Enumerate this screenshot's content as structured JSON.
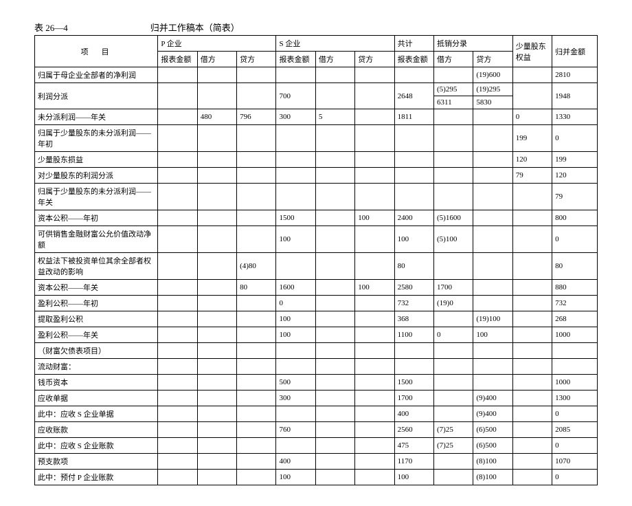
{
  "heading": {
    "number": "表 26—4",
    "title": "归并工作稿本（简表）"
  },
  "columns": {
    "item": "项　目",
    "p_enterprise": "P 企业",
    "s_enterprise": "S 企业",
    "total": "共计",
    "offset": "抵销分录",
    "minority": "少量股东权益",
    "final": "归并金额",
    "sub_amount": "报表金额",
    "sub_debit": "借方",
    "sub_credit": "贷方"
  },
  "rows": [
    {
      "label": "归属于母企业全部者的净利润",
      "p_amt": "",
      "p_dr": "",
      "p_cr": "",
      "s_amt": "",
      "s_dr": "",
      "s_cr": "",
      "tot": "",
      "off_dr": "",
      "off_cr": "(19)600",
      "min": "",
      "fin": "2810"
    },
    {
      "label": "利润分派",
      "p_amt": "",
      "p_dr": "",
      "p_cr": "",
      "s_amt": "700",
      "s_dr": "",
      "s_cr": "",
      "tot": "2648",
      "off_dr": [
        "(5)295",
        "6311"
      ],
      "off_cr": [
        "(19)295",
        "5830"
      ],
      "min": "",
      "fin": "1948",
      "split": true
    },
    {
      "label": "未分派利润——年关",
      "p_amt": "",
      "p_dr": "480",
      "p_cr": "796",
      "s_amt": "300",
      "s_dr": "5",
      "s_cr": "",
      "tot": "1811",
      "off_dr": "",
      "off_cr": "",
      "min": "0",
      "fin": "1330"
    },
    {
      "label": "归属于少量股东的未分派利润——年初",
      "p_amt": "",
      "p_dr": "",
      "p_cr": "",
      "s_amt": "",
      "s_dr": "",
      "s_cr": "",
      "tot": "",
      "off_dr": "",
      "off_cr": "",
      "min": "199",
      "fin": "0"
    },
    {
      "label": "少量股东损益",
      "p_amt": "",
      "p_dr": "",
      "p_cr": "",
      "s_amt": "",
      "s_dr": "",
      "s_cr": "",
      "tot": "",
      "off_dr": "",
      "off_cr": "",
      "min": "120",
      "fin": "199"
    },
    {
      "label": "对少量股东的利润分派",
      "p_amt": "",
      "p_dr": "",
      "p_cr": "",
      "s_amt": "",
      "s_dr": "",
      "s_cr": "",
      "tot": "",
      "off_dr": "",
      "off_cr": "",
      "min": "79",
      "fin": "120"
    },
    {
      "label": "归属于少量股东的未分派利润——年关",
      "p_amt": "",
      "p_dr": "",
      "p_cr": "",
      "s_amt": "",
      "s_dr": "",
      "s_cr": "",
      "tot": "",
      "off_dr": "",
      "off_cr": "",
      "min": "",
      "fin": "79"
    },
    {
      "label": "资本公积——年初",
      "p_amt": "",
      "p_dr": "",
      "p_cr": "",
      "s_amt": "1500",
      "s_dr": "",
      "s_cr": "100",
      "tot": "2400",
      "off_dr": "(5)1600",
      "off_cr": "",
      "min": "",
      "fin": "800"
    },
    {
      "label": "可供销售金融财富公允价值改动净额",
      "p_amt": "",
      "p_dr": "",
      "p_cr": "",
      "s_amt": "100",
      "s_dr": "",
      "s_cr": "",
      "tot": "100",
      "off_dr": "(5)100",
      "off_cr": "",
      "min": "",
      "fin": "0"
    },
    {
      "label": "权益法下被投资单位其余全部者权益改动的影响",
      "p_amt": "",
      "p_dr": "",
      "p_cr": "(4)80",
      "s_amt": "",
      "s_dr": "",
      "s_cr": "",
      "tot": "80",
      "off_dr": "",
      "off_cr": "",
      "min": "",
      "fin": "80",
      "tall": true
    },
    {
      "label": "资本公积——年关",
      "p_amt": "",
      "p_dr": "",
      "p_cr": "80",
      "s_amt": "1600",
      "s_dr": "",
      "s_cr": "100",
      "tot": "2580",
      "off_dr": "1700",
      "off_cr": "",
      "min": "",
      "fin": "880"
    },
    {
      "label": "盈利公积——年初",
      "p_amt": "",
      "p_dr": "",
      "p_cr": "",
      "s_amt": "0",
      "s_dr": "",
      "s_cr": "",
      "tot": "732",
      "off_dr": "(19)0",
      "off_cr": "",
      "min": "",
      "fin": "732"
    },
    {
      "label": "提取盈利公积",
      "p_amt": "",
      "p_dr": "",
      "p_cr": "",
      "s_amt": "100",
      "s_dr": "",
      "s_cr": "",
      "tot": "368",
      "off_dr": "",
      "off_cr": "(19)100",
      "min": "",
      "fin": "268"
    },
    {
      "label": "盈利公积——年关",
      "p_amt": "",
      "p_dr": "",
      "p_cr": "",
      "s_amt": "100",
      "s_dr": "",
      "s_cr": "",
      "tot": "1100",
      "off_dr": "0",
      "off_cr": "100",
      "min": "",
      "fin": "1000"
    },
    {
      "label": "（财富欠债表项目）",
      "p_amt": "",
      "p_dr": "",
      "p_cr": "",
      "s_amt": "",
      "s_dr": "",
      "s_cr": "",
      "tot": "",
      "off_dr": "",
      "off_cr": "",
      "min": "",
      "fin": ""
    },
    {
      "label": "流动财富：",
      "p_amt": "",
      "p_dr": "",
      "p_cr": "",
      "s_amt": "",
      "s_dr": "",
      "s_cr": "",
      "tot": "",
      "off_dr": "",
      "off_cr": "",
      "min": "",
      "fin": ""
    },
    {
      "label": "钱币资本",
      "p_amt": "",
      "p_dr": "",
      "p_cr": "",
      "s_amt": "500",
      "s_dr": "",
      "s_cr": "",
      "tot": "1500",
      "off_dr": "",
      "off_cr": "",
      "min": "",
      "fin": "1000"
    },
    {
      "label": "应收单据",
      "p_amt": "",
      "p_dr": "",
      "p_cr": "",
      "s_amt": "300",
      "s_dr": "",
      "s_cr": "",
      "tot": "1700",
      "off_dr": "",
      "off_cr": "(9)400",
      "min": "",
      "fin": "1300"
    },
    {
      "label": "此中：应收 S 企业单据",
      "p_amt": "",
      "p_dr": "",
      "p_cr": "",
      "s_amt": "",
      "s_dr": "",
      "s_cr": "",
      "tot": "400",
      "off_dr": "",
      "off_cr": "(9)400",
      "min": "",
      "fin": "0"
    },
    {
      "label": "应收账款",
      "p_amt": "",
      "p_dr": "",
      "p_cr": "",
      "s_amt": "760",
      "s_dr": "",
      "s_cr": "",
      "tot": "2560",
      "off_dr": "(7)25",
      "off_cr": "(6)500",
      "min": "",
      "fin": "2085"
    },
    {
      "label": "此中：应收 S 企业账款",
      "p_amt": "",
      "p_dr": "",
      "p_cr": "",
      "s_amt": "",
      "s_dr": "",
      "s_cr": "",
      "tot": "475",
      "off_dr": "(7)25",
      "off_cr": "(6)500",
      "min": "",
      "fin": "0"
    },
    {
      "label": "预支款项",
      "p_amt": "",
      "p_dr": "",
      "p_cr": "",
      "s_amt": "400",
      "s_dr": "",
      "s_cr": "",
      "tot": "1170",
      "off_dr": "",
      "off_cr": "(8)100",
      "min": "",
      "fin": "1070"
    },
    {
      "label": "此中：预付 P 企业账款",
      "p_amt": "",
      "p_dr": "",
      "p_cr": "",
      "s_amt": "100",
      "s_dr": "",
      "s_cr": "",
      "tot": "100",
      "off_dr": "",
      "off_cr": "(8)100",
      "min": "",
      "fin": "0"
    }
  ]
}
